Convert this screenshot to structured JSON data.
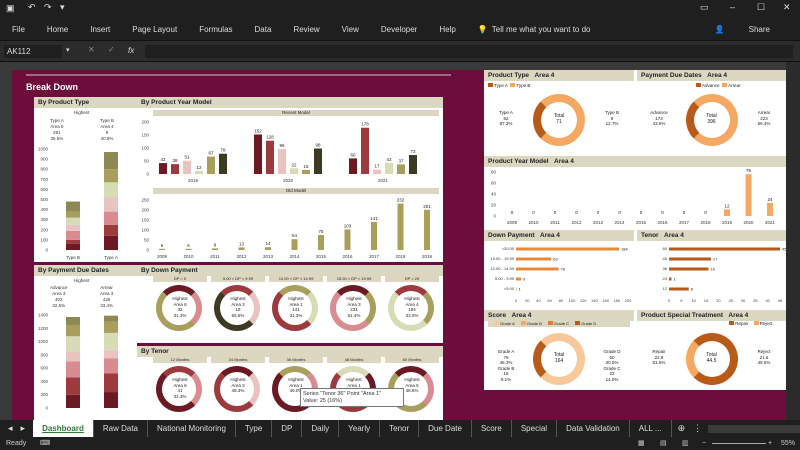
{
  "ribbon": {
    "tabs": [
      "File",
      "Home",
      "Insert",
      "Page Layout",
      "Formulas",
      "Data",
      "Review",
      "View",
      "Developer",
      "Help"
    ],
    "tell_me": "Tell me what you want to do",
    "share": "Share"
  },
  "formula": {
    "name_box": "AK112",
    "fx": "fx"
  },
  "dashboard": {
    "title": "Break Down"
  },
  "left": {
    "by_product_type": {
      "title": "By Product Type",
      "highest": "Highest",
      "a_label": "Type A",
      "a_area": "Area 6",
      "a_val": "291",
      "a_pct": "35.5%",
      "b_label": "Type B",
      "b_area": "Area 4",
      "b_val": "9",
      "b_pct": "40.9%",
      "yticks": [
        "1000",
        "900",
        "800",
        "700",
        "600",
        "500",
        "400",
        "300",
        "200",
        "100",
        "0"
      ],
      "xcats": [
        "Type B",
        "Type A"
      ]
    },
    "by_payment_due": {
      "title": "By Payment Due Dates",
      "highest": "Highest",
      "a_label": "Advance",
      "a_area": "Area 3",
      "a_val": "402",
      "a_pct": "32.5%",
      "b_label": "Arrear",
      "b_area": "Area 3",
      "b_val": "426",
      "b_pct": "33.4%",
      "yticks": [
        "1400",
        "1200",
        "1000",
        "800",
        "600",
        "400",
        "200",
        "0"
      ]
    }
  },
  "by_year": {
    "title": "By Product Year Model",
    "recent": "Recent Model",
    "old": "Old Model",
    "recent_years": [
      "2019",
      "2020",
      "2021"
    ],
    "recent_values": [
      42,
      38,
      51,
      12,
      67,
      78,
      152,
      128,
      96,
      22,
      16,
      98,
      60,
      178,
      17,
      43,
      37,
      73
    ],
    "recent_yticks": [
      "200",
      "150",
      "100",
      "50",
      "0"
    ],
    "old_years": [
      "2009",
      "2010",
      "2011",
      "2012",
      "2013",
      "2014",
      "2015",
      "2016",
      "2017",
      "2018",
      "2019",
      "2020"
    ],
    "old_values": [
      6,
      6,
      8,
      13,
      14,
      54,
      75,
      103,
      141,
      232,
      201,
      178
    ],
    "old_yticks": [
      "250",
      "200",
      "150",
      "100",
      "50",
      "0"
    ]
  },
  "down_payment": {
    "title": "By Down Payment",
    "cols": [
      "DP = 0",
      "5.00 < DP < 9.99",
      "10.00 < DP < 14.99",
      "15.00 < DP < 19.99",
      "DP > 20"
    ],
    "items": [
      {
        "h": "Highest",
        "a": "Area 6",
        "v": "42",
        "p": "31.3%"
      },
      {
        "h": "Highest",
        "a": "Area 3",
        "v": "15",
        "p": "65.5%"
      },
      {
        "h": "Highest",
        "a": "Area 1",
        "v": "141",
        "p": "31.3%"
      },
      {
        "h": "Highest",
        "a": "Area 3",
        "v": "231",
        "p": "61.4%"
      },
      {
        "h": "Highest",
        "a": "Area 4",
        "v": "194",
        "p": "33.0%"
      }
    ]
  },
  "tenor": {
    "title": "By Tenor",
    "cols": [
      "12 Months",
      "24 Months",
      "36 Months",
      "48 Months",
      "60 Months"
    ],
    "items": [
      {
        "h": "Highest",
        "a": "Area 6",
        "v": "41",
        "p": "32.3%"
      },
      {
        "h": "Highest",
        "a": "Area 3",
        "v": "",
        "p": "48.3%"
      },
      {
        "h": "Highest",
        "a": "Area 1",
        "v": "",
        "p": "49.0%"
      },
      {
        "h": "Highest",
        "a": "Area 1",
        "v": "",
        "p": "35.0%"
      },
      {
        "h": "Highest",
        "a": "Area 5",
        "v": "",
        "p": "48.6%"
      }
    ]
  },
  "tooltip": {
    "line1": "Series \"Tenor 36\" Point \"Area 1\"",
    "line2": "Value: 25 (16%)"
  },
  "right": {
    "product_type": {
      "title": "Product Type",
      "area": "Area 4",
      "leg_a": "Type A",
      "leg_b": "Type B",
      "a_label": "Type A",
      "a_val": "62",
      "a_pct": "87.3%",
      "total_label": "Total",
      "total": "71",
      "b_label": "Type B",
      "b_val": "9",
      "b_pct": "12.7%"
    },
    "payment_due": {
      "title": "Payment Due Dates",
      "area": "Area 4",
      "leg_a": "Advance",
      "leg_b": "Arrear",
      "a_label": "Advance",
      "a_val": "173",
      "a_pct": "43.6%",
      "total_label": "Total",
      "total": "396",
      "b_label": "Arrear",
      "b_val": "223",
      "b_pct": "56.4%"
    },
    "year_model": {
      "title": "Product Year Model",
      "area": "Area 4",
      "yticks": [
        "80",
        "60",
        "40",
        "20",
        "0"
      ],
      "years": [
        "2009",
        "2010",
        "2011",
        "2012",
        "2013",
        "2014",
        "2015",
        "2016",
        "2017",
        "2018",
        "2019",
        "2020",
        "2021"
      ],
      "values": [
        0,
        0,
        0,
        0,
        0,
        0,
        0,
        0,
        0,
        0,
        12,
        76,
        24
      ]
    },
    "down_payment": {
      "title": "Down Payment",
      "area": "Area 4",
      "cats": [
        ">20.00",
        "15.00 - 19.99",
        "10.00 - 14.99",
        "5.00 - 9.99",
        "<5.00"
      ],
      "values": [
        184,
        63,
        76,
        9,
        1
      ],
      "xticks": [
        "0",
        "20",
        "40",
        "60",
        "80",
        "100",
        "120",
        "140",
        "160",
        "180",
        "200"
      ]
    },
    "tenor": {
      "title": "Tenor",
      "area": "Area 4",
      "cats": [
        "60",
        "48",
        "36",
        "24",
        "12"
      ],
      "values": [
        45,
        17,
        16,
        1,
        8
      ],
      "xticks": [
        "0",
        "5",
        "10",
        "15",
        "20",
        "25",
        "30",
        "35",
        "40",
        "45"
      ]
    },
    "score": {
      "title": "Score",
      "area": "Area 4",
      "legend": [
        "Grade A",
        "Grade B",
        "Grade C",
        "Grade D"
      ],
      "ga": "Grade A",
      "ga_v": "76",
      "ga_p": "46.3%",
      "gd": "Grade D",
      "gd_v": "50",
      "gd_p": "30.5%",
      "gb": "Grade B",
      "gb_v": "15",
      "gb_p": "9.1%",
      "gc": "Grade C",
      "gc_v": "23",
      "gc_p": "14.0%",
      "total_label": "Total",
      "total": "164"
    },
    "special": {
      "title": "Product Special Treatment",
      "area": "Area 4",
      "legend": [
        "Repair",
        "Reject"
      ],
      "rp": "Repair",
      "rp_v": "22.9",
      "rp_p": "51.5%",
      "rj": "Reject",
      "rj_v": "21.6",
      "rj_p": "48.5%",
      "total_label": "Total",
      "total": "44.5"
    }
  },
  "sheet_tabs": [
    "Dashboard",
    "Raw Data",
    "National Monitoring",
    "Type",
    "DP",
    "Daily",
    "Yearly",
    "Tenor",
    "Due Date",
    "Score",
    "Special",
    "Data Validation",
    "ALL ..."
  ],
  "status": {
    "ready": "Ready",
    "zoom": "55%"
  }
}
